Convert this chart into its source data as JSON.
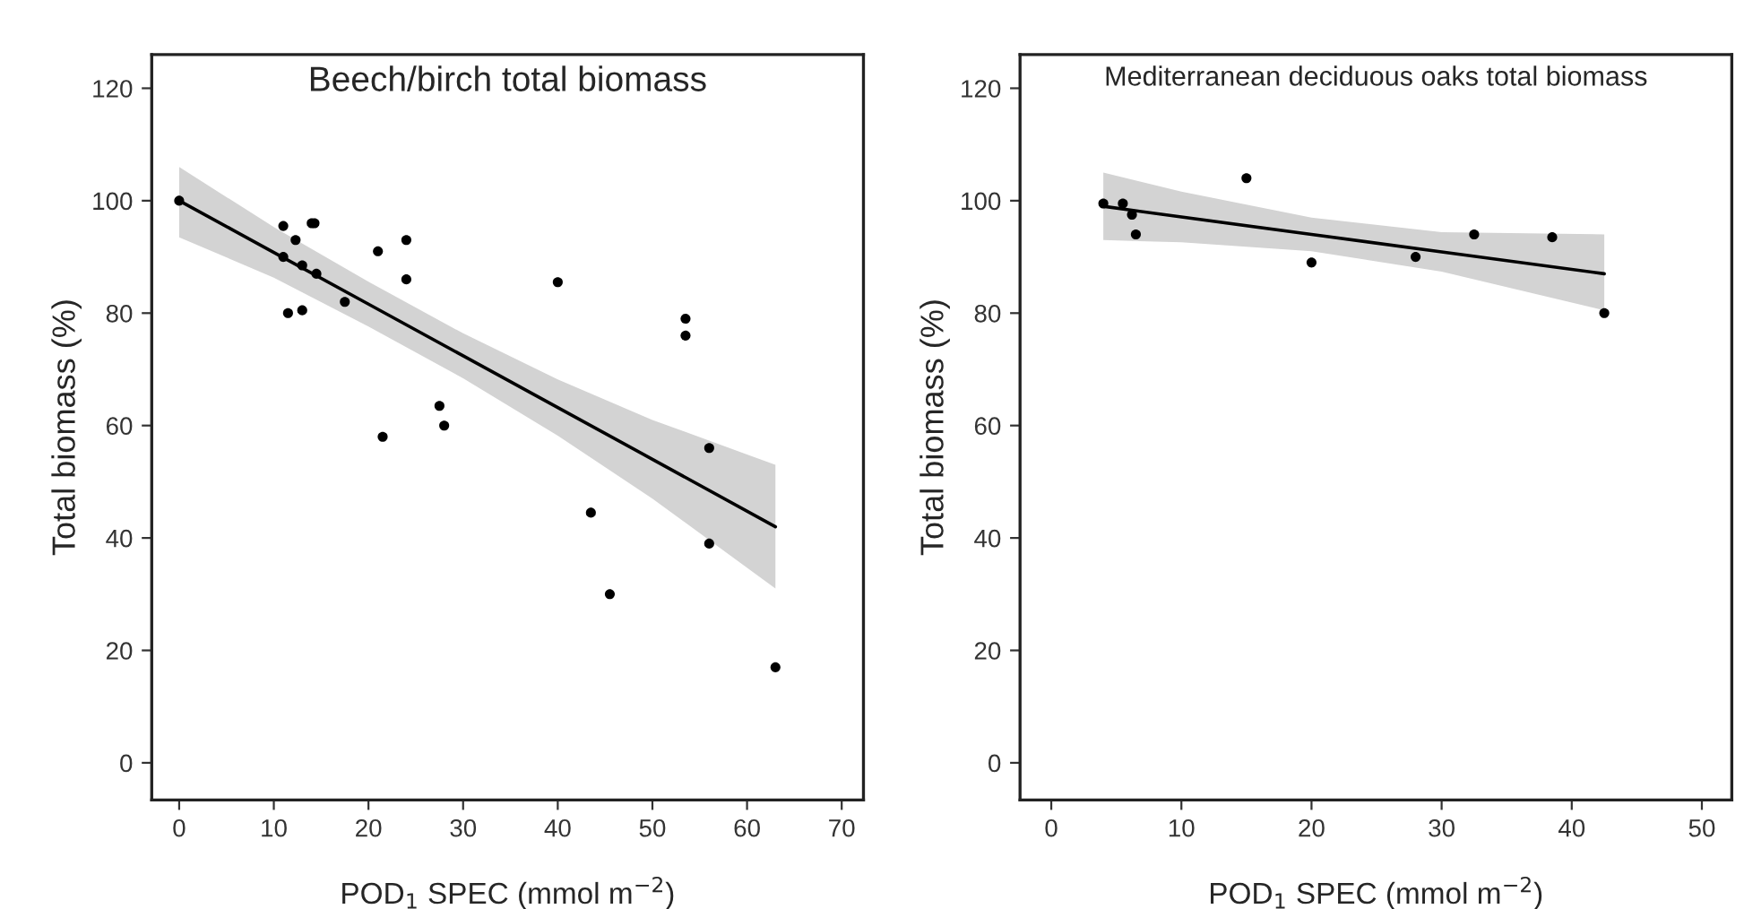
{
  "chart_data": [
    {
      "type": "scatter",
      "title": "Beech/birch total biomass",
      "xlabel": "POD$_{1}$ SPEC (mmol m$^{−2}$)",
      "ylabel": "Total biomass (%)",
      "xlim": [
        -2.9,
        72.3
      ],
      "ylim": [
        -6.6,
        126
      ],
      "xticks": [
        0,
        10,
        20,
        30,
        40,
        50,
        60,
        70
      ],
      "yticks": [
        0,
        20,
        40,
        60,
        80,
        100,
        120
      ],
      "grid": false,
      "series": [
        {
          "marker": "circle",
          "color": "#000000",
          "x": [
            0,
            11,
            12.3,
            11,
            13,
            14,
            14.3,
            14.5,
            11.5,
            13,
            17.5,
            21,
            24,
            24,
            21.5,
            27.5,
            28,
            40,
            53.5,
            53.5,
            56,
            56,
            43.5,
            45.5,
            63
          ],
          "values": [
            100,
            95.5,
            93,
            90,
            88.5,
            96,
            96,
            87,
            80,
            80.5,
            82,
            91,
            93,
            86,
            58,
            63.5,
            60,
            85.5,
            79,
            76,
            56,
            39,
            44.5,
            30,
            17
          ]
        },
        {
          "type": "line",
          "marker": "none",
          "color": "#000000",
          "x": [
            0,
            10,
            20,
            30,
            40,
            50,
            63
          ],
          "values": [
            100,
            90.8,
            81.6,
            72.4,
            63.2,
            54,
            42
          ],
          "lower": [
            93.5,
            86.3,
            77.6,
            68.4,
            58.2,
            47,
            31
          ],
          "upper": [
            106,
            95.3,
            85.6,
            76.4,
            68.2,
            61,
            53
          ]
        }
      ]
    },
    {
      "type": "scatter",
      "title": "Mediterranean deciduous oaks total biomass",
      "xlabel": "POD$_{1}$ SPEC (mmol m$^{−2}$)",
      "ylabel": "Total biomass (%)",
      "xlim": [
        -2.4,
        52.3
      ],
      "ylim": [
        -6.6,
        126
      ],
      "xticks": [
        0,
        10,
        20,
        30,
        40,
        50
      ],
      "yticks": [
        0,
        20,
        40,
        60,
        80,
        100,
        120
      ],
      "grid": false,
      "series": [
        {
          "marker": "circle",
          "color": "#000000",
          "x": [
            4,
            5.5,
            6.2,
            6.5,
            15,
            20,
            28,
            32.5,
            38.5,
            42.5
          ],
          "values": [
            99.5,
            99.5,
            97.5,
            94,
            104,
            89,
            90,
            94,
            93.5,
            80
          ]
        },
        {
          "type": "line",
          "marker": "none",
          "color": "#000000",
          "x": [
            4,
            10,
            20,
            30,
            42.5
          ],
          "values": [
            99,
            97.1,
            94,
            90.9,
            87
          ],
          "lower": [
            93,
            92.6,
            91,
            87.4,
            80.5
          ],
          "upper": [
            105,
            101.6,
            97,
            94.4,
            94
          ]
        }
      ]
    }
  ]
}
